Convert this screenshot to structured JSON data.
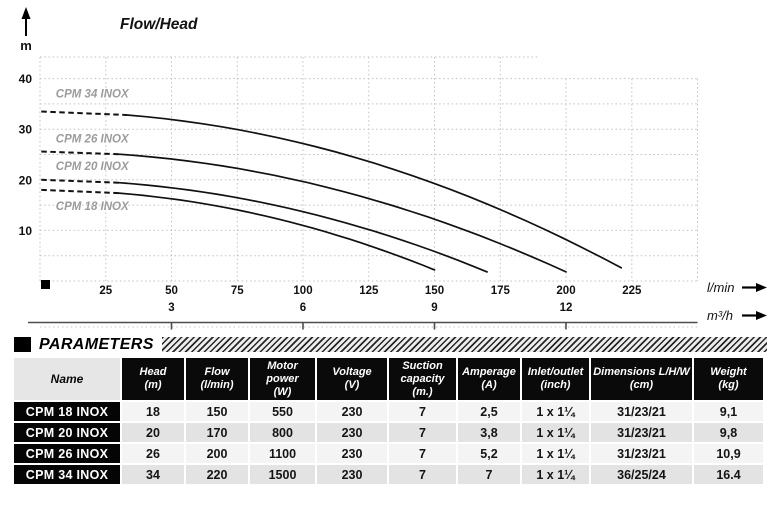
{
  "chart_data": {
    "type": "line",
    "title": "Flow/Head",
    "y_axis": {
      "unit": "m",
      "ticks": [
        10,
        20,
        30,
        40
      ],
      "gridline_step_m": 5,
      "range": [
        0,
        45
      ]
    },
    "x_axis_primary": {
      "unit": "l/min",
      "ticks": [
        25,
        50,
        75,
        100,
        125,
        150,
        175,
        200,
        225
      ],
      "range": [
        0,
        250
      ]
    },
    "x_axis_secondary": {
      "unit": "m³/h",
      "ticks": [
        3,
        6,
        9,
        12
      ],
      "lmin_per_unit": 16.667
    },
    "grid": true,
    "legend_position": "inline-curve-labels",
    "series": [
      {
        "name": "CPM 18 INOX",
        "shutoff_head_m": 18,
        "max_flow_lmin": 150,
        "end_head_m": 2.2,
        "dashed_until_lmin": 30,
        "label_pos": {
          "flow": 6,
          "head": 14.0
        }
      },
      {
        "name": "CPM 20 INOX",
        "shutoff_head_m": 20,
        "max_flow_lmin": 170,
        "end_head_m": 1.8,
        "dashed_until_lmin": 30,
        "label_pos": {
          "flow": 6,
          "head": 21.9
        }
      },
      {
        "name": "CPM 26 INOX",
        "shutoff_head_m": 25.6,
        "max_flow_lmin": 200,
        "end_head_m": 1.8,
        "dashed_until_lmin": 30,
        "label_pos": {
          "flow": 6,
          "head": 27.4
        }
      },
      {
        "name": "CPM 34 INOX",
        "shutoff_head_m": 33.5,
        "max_flow_lmin": 221,
        "end_head_m": 2.6,
        "dashed_until_lmin": 33,
        "label_pos": {
          "flow": 6,
          "head": 36.3
        }
      }
    ]
  },
  "parameters": {
    "section_title": "PARAMETERS",
    "columns": [
      {
        "label": "Name",
        "unit": ""
      },
      {
        "label": "Head",
        "unit": "(m)"
      },
      {
        "label": "Flow",
        "unit": "(l/min)"
      },
      {
        "label": "Motor power",
        "unit": "(W)"
      },
      {
        "label": "Voltage",
        "unit": "(V)"
      },
      {
        "label": "Suction capacity",
        "unit": "(m.)"
      },
      {
        "label": "Amperage",
        "unit": "(A)"
      },
      {
        "label": "Inlet/outlet",
        "unit": "(inch)"
      },
      {
        "label": "Dimensions L/H/W",
        "unit": "(cm)"
      },
      {
        "label": "Weight",
        "unit": "(kg)"
      }
    ],
    "rows": [
      {
        "name": "CPM 18 INOX",
        "values": [
          "18",
          "150",
          "550",
          "230",
          "7",
          "2,5",
          "1 x 1¼",
          "31/23/21",
          "9,1"
        ]
      },
      {
        "name": "CPM 20 INOX",
        "values": [
          "20",
          "170",
          "800",
          "230",
          "7",
          "3,8",
          "1 x 1¼",
          "31/23/21",
          "9,8"
        ]
      },
      {
        "name": "CPM 26 INOX",
        "values": [
          "26",
          "200",
          "1100",
          "230",
          "7",
          "5,2",
          "1 x 1¼",
          "31/23/21",
          "10,9"
        ]
      },
      {
        "name": "CPM 34 INOX",
        "values": [
          "34",
          "220",
          "1500",
          "230",
          "7",
          "7",
          "1 x 1¼",
          "36/25/24",
          "16.4"
        ]
      }
    ]
  },
  "colors": {
    "curve": "#111111",
    "grid": "#c4c4c4",
    "curve_label": "#9c9c9c",
    "axis_text": "#111111",
    "secondary_axis_line": "#4d4d4d",
    "table_header_bg": "#0a0a0a",
    "name_header_bg": "#e6e6e6",
    "row_light": "#f4f4f4",
    "row_dark": "#e3e3e3"
  }
}
